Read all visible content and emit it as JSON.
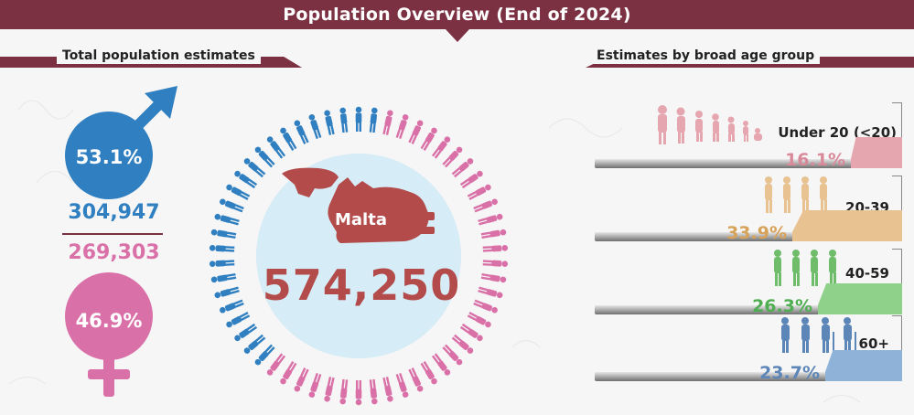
{
  "title": "Population Overview (End of 2024)",
  "sections": {
    "left_title": "Total population estimates",
    "right_title": "Estimates by broad age group"
  },
  "gender": {
    "male_pct": "53.1%",
    "male_count": "304,947",
    "female_count": "269,303",
    "female_pct": "46.9%",
    "colors": {
      "male": "#2f7fc1",
      "female": "#d971a8"
    }
  },
  "total": {
    "country": "Malta",
    "population": "574,250"
  },
  "age_groups": [
    {
      "label": "Under 20 (<20)",
      "pct": "16.1%",
      "share": 0.161,
      "color": "#e6a6b0",
      "text_color": "#d98a9a",
      "icon": "children-walking-icon"
    },
    {
      "label": "20-39",
      "pct": "33.9%",
      "share": 0.339,
      "color": "#e8c391",
      "text_color": "#d7a25a",
      "icon": "young-adults-walking-icon"
    },
    {
      "label": "40-59",
      "pct": "26.3%",
      "share": 0.263,
      "color": "#8fd18a",
      "text_color": "#4fae52",
      "icon": "adults-walking-icon"
    },
    {
      "label": "60+",
      "pct": "23.7%",
      "share": 0.237,
      "color": "#8eb2d8",
      "text_color": "#5d86b8",
      "icon": "elderly-walking-icon"
    }
  ]
}
